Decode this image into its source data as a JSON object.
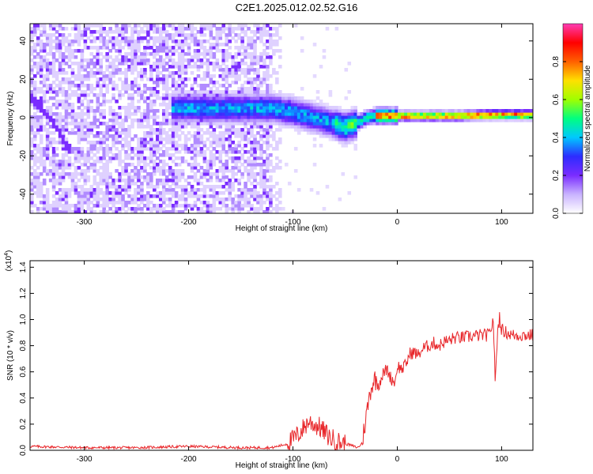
{
  "title": "C2E1.2025.012.02.52.G16",
  "chart_data": [
    {
      "type": "heatmap",
      "xlabel": "Height of straight line (km)",
      "ylabel": "Frequency (Hz)",
      "xlim": [
        -352,
        130
      ],
      "ylim": [
        -50,
        49
      ],
      "xticks": [
        "-300",
        "-200",
        "-100",
        "0",
        "100"
      ],
      "xtick_values": [
        -300,
        -200,
        -100,
        0,
        100
      ],
      "yticks": [
        "-40",
        "-20",
        "0",
        "20",
        "40"
      ],
      "ytick_values": [
        -40,
        -20,
        0,
        20,
        40
      ],
      "colorbar": {
        "label": "Normalized spectral amplitude",
        "range": [
          0.0,
          1.0
        ],
        "ticks": [
          "0.0",
          "0.2",
          "0.4",
          "0.6",
          "0.8"
        ],
        "tick_values": [
          0.0,
          0.2,
          0.4,
          0.6,
          0.8
        ],
        "colormap": [
          "#ffffff",
          "#c9b3ff",
          "#7a2cff",
          "#2d2cff",
          "#00c8ff",
          "#00ff80",
          "#a0ff00",
          "#ffe000",
          "#ff6000",
          "#ff0000",
          "#ff3cb4"
        ]
      },
      "ridge": {
        "x": [
          -120,
          -100,
          -80,
          -60,
          -50,
          -40,
          -30,
          -20,
          0,
          20,
          60,
          90,
          130
        ],
        "y": [
          5,
          3,
          0,
          -3,
          -5,
          -3,
          0,
          1,
          1,
          1,
          1,
          1.5,
          1.5
        ]
      },
      "diagonal_streak": {
        "x": [
          -350,
          -330,
          -315
        ],
        "y": [
          10,
          -2,
          -16
        ]
      }
    },
    {
      "type": "line",
      "xlabel": "Height of straight line (km)",
      "ylabel": "SNR (10 * v/v)",
      "scale_note": "(x10",
      "scale_exp": "4",
      "xlim": [
        -352,
        130
      ],
      "ylim": [
        0,
        1.45
      ],
      "xticks": [
        "-300",
        "-200",
        "-100",
        "0",
        "100"
      ],
      "xtick_values": [
        -300,
        -200,
        -100,
        0,
        100
      ],
      "yticks": [
        "0.0",
        "0.2",
        "0.4",
        "0.6",
        "0.8",
        "1.0",
        "1.2",
        "1.4"
      ],
      "ytick_values": [
        0.0,
        0.2,
        0.4,
        0.6,
        0.8,
        1.0,
        1.2,
        1.4
      ],
      "color": "#e8272b",
      "series": [
        {
          "x": [
            -352,
            -300,
            -250,
            -200,
            -150,
            -120,
            -105,
            -95,
            -85,
            -75,
            -65,
            -55,
            -45,
            -38,
            -34,
            -30,
            -26,
            -22,
            -18,
            -14,
            -10,
            -6,
            -2,
            0,
            4,
            8,
            12,
            16,
            20,
            25,
            30,
            35,
            40,
            45,
            50,
            55,
            60,
            70,
            80,
            88,
            92,
            94,
            96,
            98,
            100,
            105,
            110,
            120,
            130
          ],
          "y": [
            0.03,
            0.02,
            0.02,
            0.03,
            0.02,
            0.02,
            0.05,
            0.12,
            0.22,
            0.18,
            0.1,
            0.06,
            0.04,
            0.02,
            0.05,
            0.25,
            0.45,
            0.55,
            0.5,
            0.58,
            0.62,
            0.55,
            0.52,
            0.65,
            0.62,
            0.65,
            0.74,
            0.75,
            0.73,
            0.78,
            0.8,
            0.82,
            0.8,
            0.83,
            0.84,
            0.86,
            0.86,
            0.87,
            0.88,
            0.88,
            1.0,
            0.5,
            0.9,
            1.02,
            0.92,
            0.9,
            0.88,
            0.88,
            0.88
          ]
        }
      ]
    }
  ]
}
